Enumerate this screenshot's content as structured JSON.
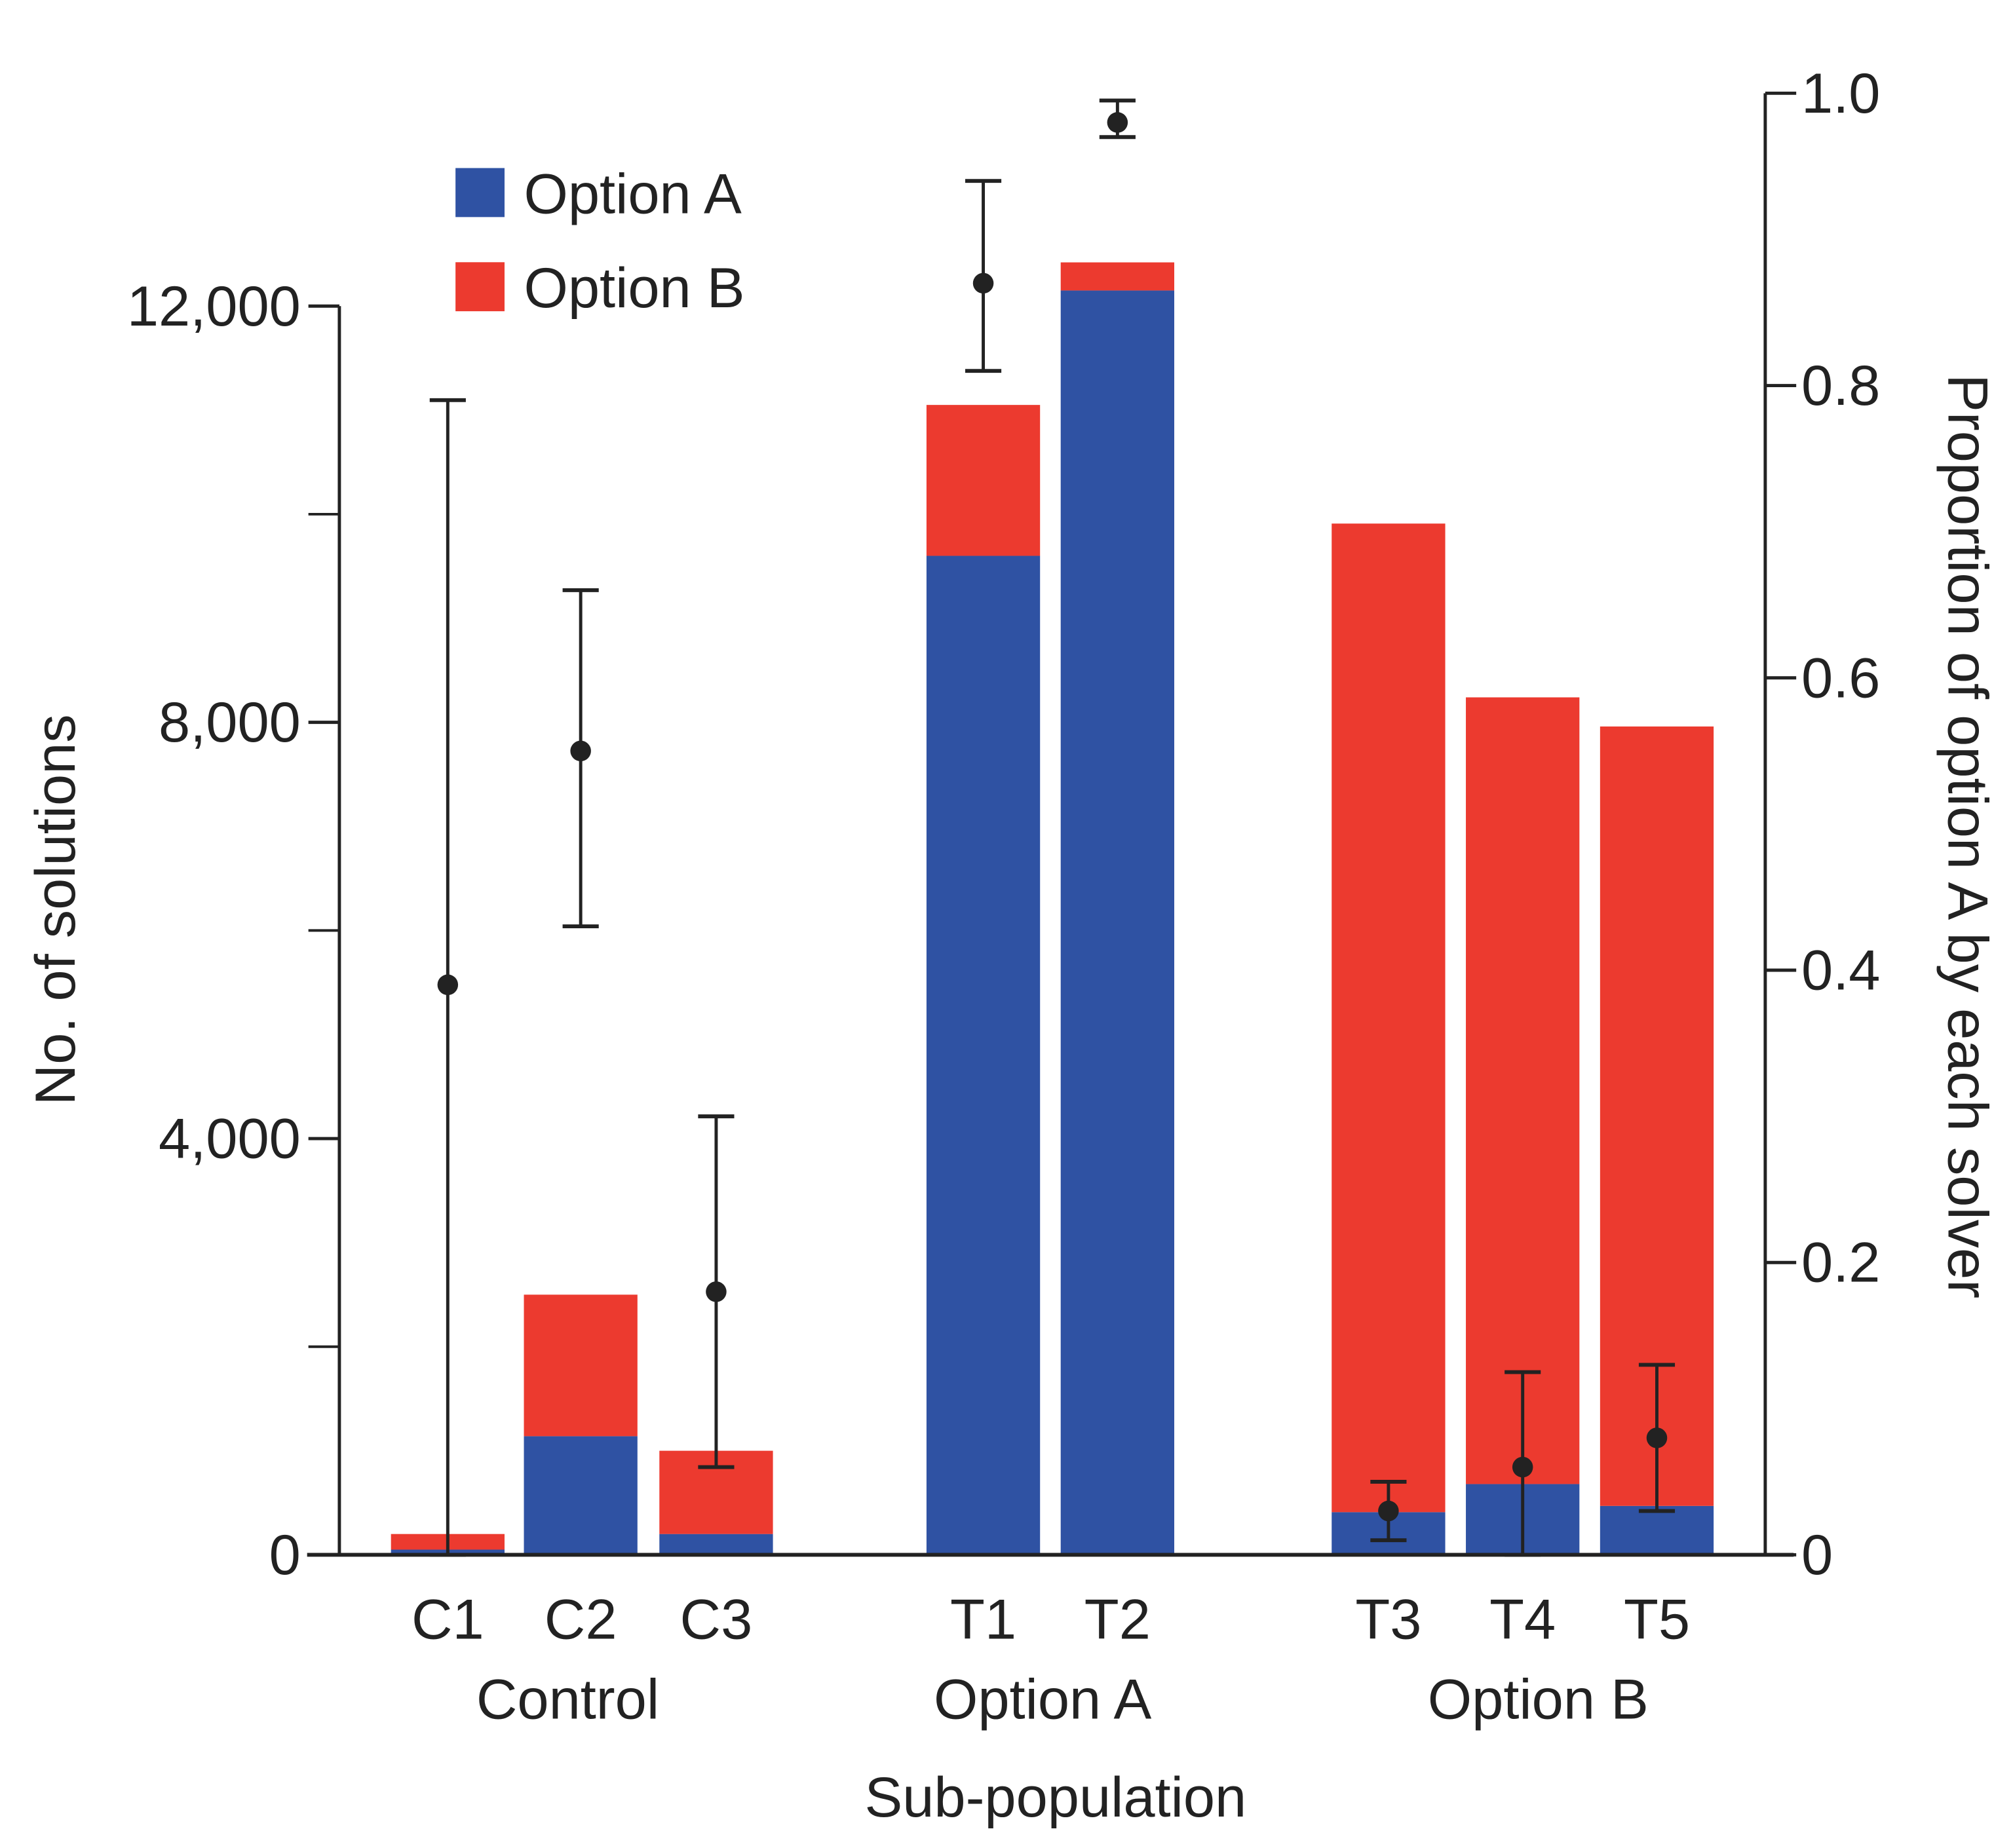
{
  "chart_data": {
    "type": "bar",
    "stacked": true,
    "categories": [
      "C1",
      "C2",
      "C3",
      "T1",
      "T2",
      "T3",
      "T4",
      "T5"
    ],
    "groups": [
      {
        "label": "Control",
        "categories": [
          "C1",
          "C2",
          "C3"
        ]
      },
      {
        "label": "Option A",
        "categories": [
          "T1",
          "T2"
        ]
      },
      {
        "label": "Option B",
        "categories": [
          "T3",
          "T4",
          "T5"
        ]
      }
    ],
    "series": [
      {
        "name": "Option A",
        "color": "#2f52a3",
        "values": [
          50,
          1140,
          200,
          9600,
          12150,
          410,
          680,
          470
        ]
      },
      {
        "name": "Option B",
        "color": "#ec3a2f",
        "values": [
          150,
          1360,
          800,
          1450,
          270,
          9500,
          7560,
          7490
        ]
      }
    ],
    "proportion_points": {
      "axis": "right",
      "color": "#222222",
      "values": [
        0.39,
        0.55,
        0.18,
        0.87,
        0.98,
        0.03,
        0.06,
        0.08
      ],
      "err_low": [
        0.0,
        0.43,
        0.06,
        0.81,
        0.97,
        0.01,
        0.0,
        0.03
      ],
      "err_high": [
        0.79,
        0.66,
        0.3,
        0.94,
        0.995,
        0.05,
        0.125,
        0.13
      ]
    },
    "xlabel": "Sub-population",
    "ylabel": "No. of solutions",
    "y2label": "Proportion of option A by each solver",
    "ylim": [
      0,
      14000
    ],
    "yticks": [
      0,
      4000,
      8000,
      12000
    ],
    "yticks_minor": [
      2000,
      6000,
      10000
    ],
    "ytick_labels": [
      "0",
      "4,000",
      "8,000",
      "12,000"
    ],
    "y2lim": [
      0,
      1.0
    ],
    "y2ticks": [
      0,
      0.2,
      0.4,
      0.6,
      0.8,
      1.0
    ],
    "y2tick_labels": [
      "0",
      "0.2",
      "0.4",
      "0.6",
      "0.8",
      "1.0"
    ],
    "legend": {
      "placement": "top-left",
      "entries": [
        "Option A",
        "Option B"
      ]
    },
    "grid": false
  }
}
